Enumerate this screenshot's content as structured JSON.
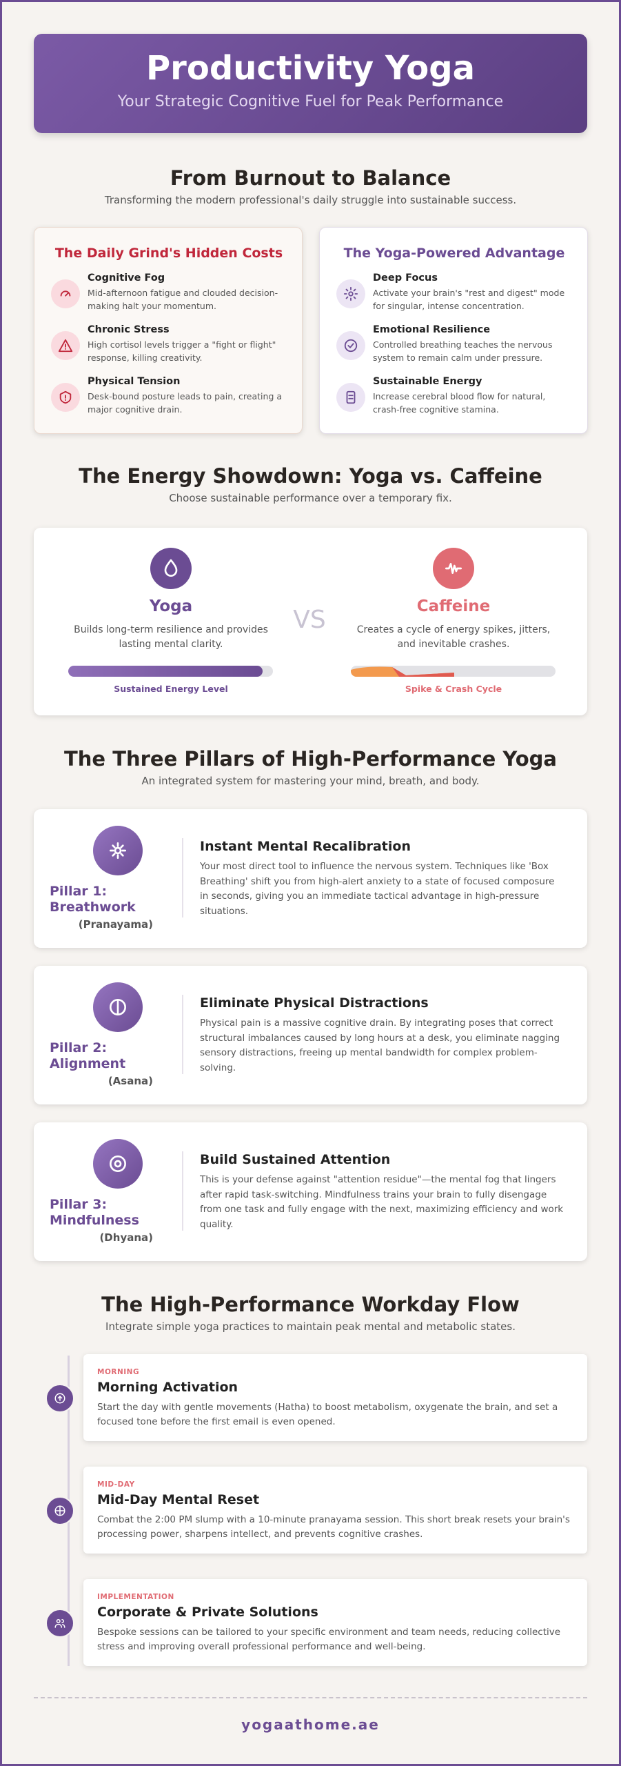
{
  "header": {
    "title": "Productivity Yoga",
    "subtitle": "Your Strategic Cognitive Fuel for Peak Performance"
  },
  "balance": {
    "title": "From Burnout to Balance",
    "subtitle": "Transforming the modern professional's daily struggle into sustainable success.",
    "cards": [
      {
        "title": "The Daily Grind's Hidden Costs",
        "items": [
          {
            "title": "Cognitive Fog",
            "text": "Mid-afternoon fatigue and clouded decision-making halt your momentum."
          },
          {
            "title": "Chronic Stress",
            "text": "High cortisol levels trigger a \"fight or flight\" response, killing creativity."
          },
          {
            "title": "Physical Tension",
            "text": "Desk-bound posture leads to pain, creating a major cognitive drain."
          }
        ]
      },
      {
        "title": "The Yoga-Powered Advantage",
        "items": [
          {
            "title": "Deep Focus",
            "text": "Activate your brain's \"rest and digest\" mode for singular, intense concentration."
          },
          {
            "title": "Emotional Resilience",
            "text": "Controlled breathing teaches the nervous system to remain calm under pressure."
          },
          {
            "title": "Sustainable Energy",
            "text": "Increase cerebral blood flow for natural, crash-free cognitive stamina."
          }
        ]
      }
    ]
  },
  "showdown": {
    "title": "The Energy Showdown: Yoga vs. Caffeine",
    "subtitle": "Choose sustainable performance over a temporary fix.",
    "vs": "VS",
    "sides": [
      {
        "name": "Yoga",
        "text": "Builds long-term resilience and provides lasting mental clarity.",
        "bar_label": "Sustained Energy Level"
      },
      {
        "name": "Caffeine",
        "text": "Creates a cycle of energy spikes, jitters, and inevitable crashes.",
        "bar_label": "Spike & Crash Cycle"
      }
    ]
  },
  "pillars": {
    "title": "The Three Pillars of High-Performance Yoga",
    "subtitle": "An integrated system for mastering your mind, breath, and body.",
    "items": [
      {
        "label": "Pillar 1: Breathwork",
        "sub": "(Pranayama)",
        "title": "Instant Mental Recalibration",
        "text": "Your most direct tool to influence the nervous system. Techniques like 'Box Breathing' shift you from high-alert anxiety to a state of focused composure in seconds, giving you an immediate tactical advantage in high-pressure situations."
      },
      {
        "label": "Pillar 2: Alignment",
        "sub": "(Asana)",
        "title": "Eliminate Physical Distractions",
        "text": "Physical pain is a massive cognitive drain. By integrating poses that correct structural imbalances caused by long hours at a desk, you eliminate nagging sensory distractions, freeing up mental bandwidth for complex problem-solving."
      },
      {
        "label": "Pillar 3: Mindfulness",
        "sub": "(Dhyana)",
        "title": "Build Sustained Attention",
        "text": "This is your defense against \"attention residue\"—the mental fog that lingers after rapid task-switching. Mindfulness trains your brain to fully disengage from one task and fully engage with the next, maximizing efficiency and work quality."
      }
    ]
  },
  "workday": {
    "title": "The High-Performance Workday Flow",
    "subtitle": "Integrate simple yoga practices to maintain peak mental and metabolic states.",
    "steps": [
      {
        "tag": "MORNING",
        "title": "Morning Activation",
        "text": "Start the day with gentle movements (Hatha) to boost metabolism, oxygenate the brain, and set a focused tone before the first email is even opened."
      },
      {
        "tag": "MID-DAY",
        "title": "Mid-Day Mental Reset",
        "text": "Combat the 2:00 PM slump with a 10-minute pranayama session. This short break resets your brain's processing power, sharpens intellect, and prevents cognitive crashes."
      },
      {
        "tag": "IMPLEMENTATION",
        "title": "Corporate & Private Solutions",
        "text": "Bespoke sessions can be tailored to your specific environment and team needs, reducing collective stress and improving overall professional performance and well-being."
      }
    ]
  },
  "footer": {
    "text": "yogaathome.ae"
  }
}
